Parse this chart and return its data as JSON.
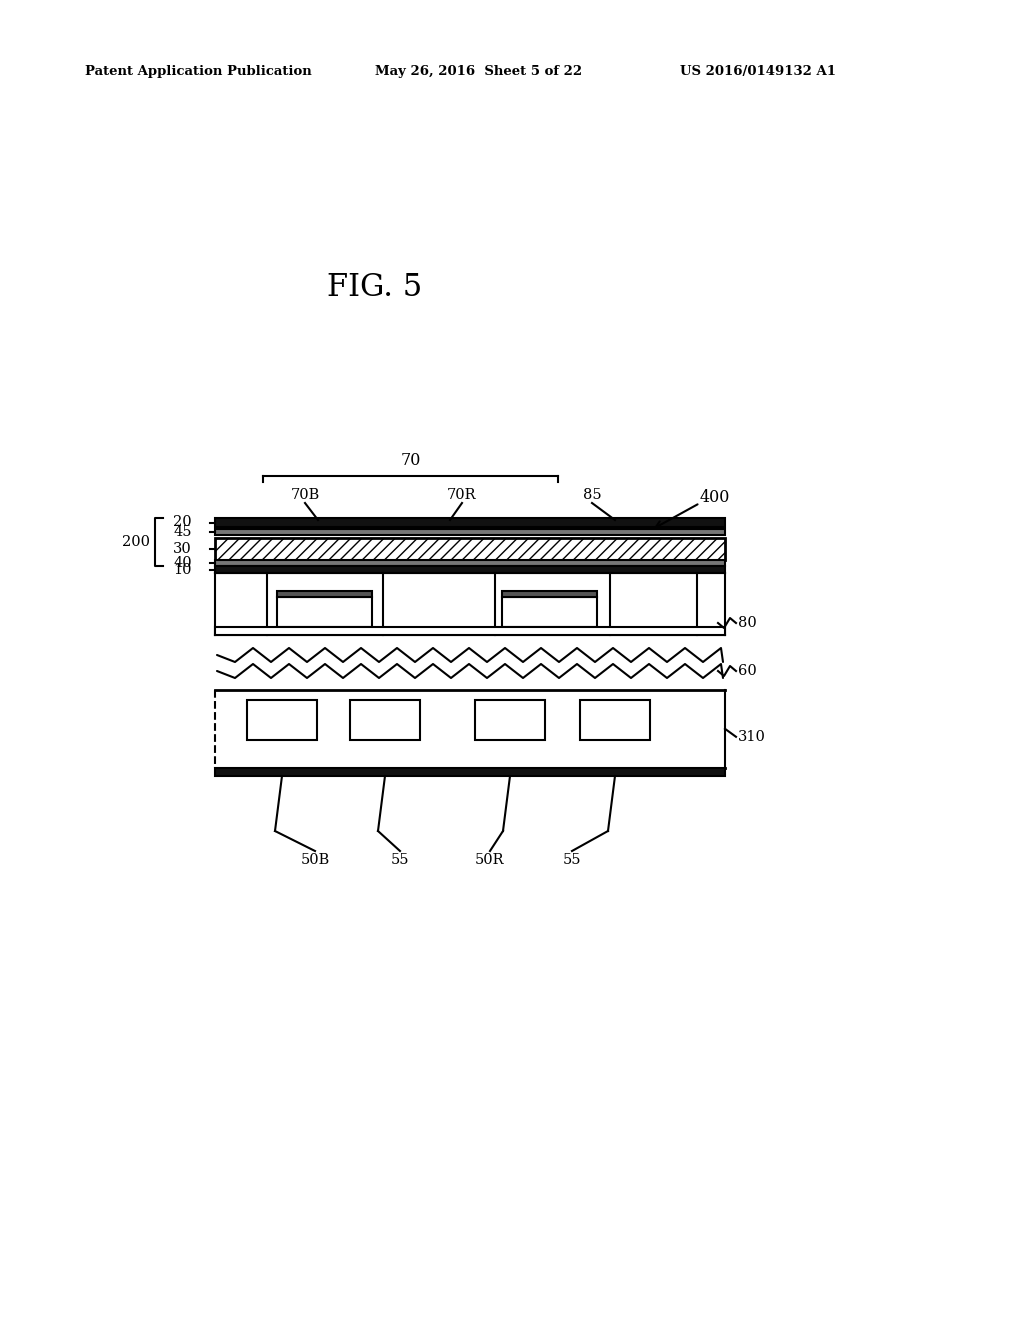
{
  "bg_color": "#ffffff",
  "black": "#000000",
  "header_left": "Patent Application Publication",
  "header_mid": "May 26, 2016  Sheet 5 of 22",
  "header_right": "US 2016/0149132 A1",
  "fig_title": "FIG. 5",
  "label_400": "400",
  "label_70": "70",
  "label_70B": "70B",
  "label_70R": "70R",
  "label_85": "85",
  "label_20": "20",
  "label_45": "45",
  "label_30": "30",
  "label_40": "40",
  "label_10": "10",
  "label_200": "200",
  "label_80": "80",
  "label_60": "60",
  "label_310": "310",
  "label_50B": "50B",
  "label_55a": "55",
  "label_50R": "50R",
  "label_55b": "55"
}
